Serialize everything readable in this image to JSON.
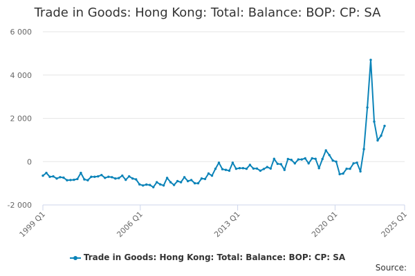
{
  "chart_data": {
    "type": "line",
    "title": "Trade in Goods: Hong Kong: Total: Balance: BOP: CP: SA",
    "x_tick_labels": [
      "1999 Q1",
      "2006 Q1",
      "2013 Q1",
      "2020 Q1",
      "2025 Q1"
    ],
    "y_tick_labels": [
      "-2 000",
      "0",
      "2 000",
      "4 000",
      "6 000"
    ],
    "y_ticks": [
      -2000,
      0,
      2000,
      4000,
      6000
    ],
    "ylim": [
      -2000,
      6000
    ],
    "x_start": "1999 Q1",
    "x_end": "2025 Q1",
    "grid": true,
    "legend_position": "bottom",
    "series": [
      {
        "name": "Trade in Goods: Hong Kong: Total: Balance: BOP: CP: SA",
        "color": "#0a83b8",
        "values": [
          -650,
          -520,
          -700,
          -680,
          -780,
          -720,
          -740,
          -860,
          -850,
          -840,
          -800,
          -520,
          -820,
          -860,
          -700,
          -700,
          -680,
          -620,
          -750,
          -700,
          -720,
          -780,
          -760,
          -650,
          -840,
          -680,
          -780,
          -820,
          -1050,
          -1100,
          -1060,
          -1080,
          -1180,
          -950,
          -1050,
          -1100,
          -750,
          -950,
          -1080,
          -900,
          -950,
          -720,
          -900,
          -850,
          -1000,
          -1000,
          -780,
          -800,
          -550,
          -650,
          -330,
          -50,
          -350,
          -380,
          -420,
          -50,
          -330,
          -300,
          -300,
          -330,
          -150,
          -320,
          -320,
          -420,
          -340,
          -250,
          -320,
          130,
          -100,
          -120,
          -380,
          120,
          80,
          -80,
          100,
          100,
          150,
          -80,
          150,
          130,
          -300,
          120,
          520,
          300,
          50,
          0,
          -580,
          -550,
          -330,
          -330,
          -80,
          -50,
          -450,
          580,
          2500,
          4700,
          1850,
          980,
          1200,
          1650
        ]
      }
    ],
    "source_label": "Source:"
  }
}
